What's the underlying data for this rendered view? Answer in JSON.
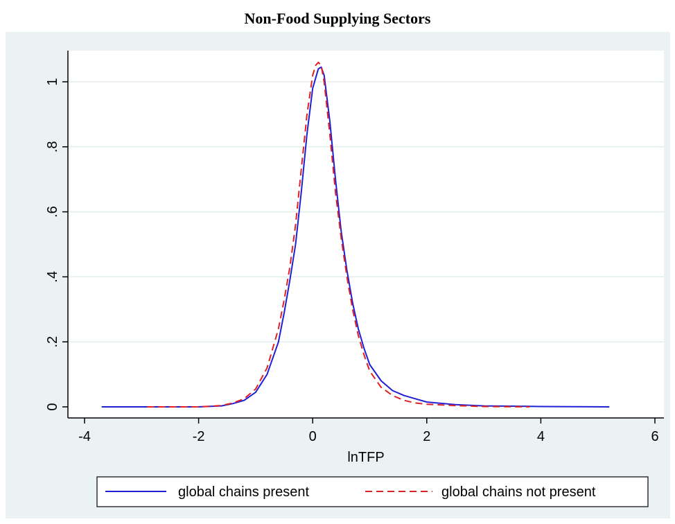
{
  "chart_data": {
    "type": "line",
    "title": "Non-Food Supplying Sectors",
    "xlabel": "lnTFP",
    "ylabel": "",
    "xlim": [
      -4,
      6
    ],
    "ylim": [
      0,
      1.1
    ],
    "xticks": [
      -4,
      -2,
      0,
      2,
      4,
      6
    ],
    "xtick_labels": [
      "-4",
      "-2",
      "0",
      "2",
      "4",
      "6"
    ],
    "yticks": [
      0,
      0.2,
      0.4,
      0.6,
      0.8,
      1
    ],
    "ytick_labels": [
      "0",
      ".2",
      ".4",
      ".6",
      ".8",
      "1"
    ],
    "grid": true,
    "legend_position": "bottom",
    "series": [
      {
        "name": "global chains present",
        "color": "#1f1fd6",
        "style": "solid",
        "x": [
          -3.7,
          -2.0,
          -1.6,
          -1.4,
          -1.2,
          -1.0,
          -0.8,
          -0.6,
          -0.5,
          -0.4,
          -0.3,
          -0.2,
          -0.1,
          0.0,
          0.1,
          0.15,
          0.2,
          0.3,
          0.4,
          0.5,
          0.6,
          0.7,
          0.8,
          0.9,
          1.0,
          1.2,
          1.4,
          1.6,
          1.8,
          2.0,
          2.5,
          3.0,
          4.0,
          5.2
        ],
        "y": [
          0.0,
          0.0,
          0.003,
          0.01,
          0.02,
          0.045,
          0.1,
          0.2,
          0.29,
          0.39,
          0.5,
          0.66,
          0.84,
          0.98,
          1.04,
          1.045,
          1.02,
          0.88,
          0.7,
          0.54,
          0.42,
          0.32,
          0.24,
          0.18,
          0.13,
          0.08,
          0.05,
          0.035,
          0.025,
          0.015,
          0.007,
          0.003,
          0.001,
          0.0
        ]
      },
      {
        "name": "global chains not present",
        "color": "#e02020",
        "style": "dashed",
        "x": [
          -2.9,
          -2.0,
          -1.6,
          -1.4,
          -1.2,
          -1.0,
          -0.8,
          -0.6,
          -0.5,
          -0.4,
          -0.3,
          -0.2,
          -0.1,
          0.0,
          0.05,
          0.1,
          0.15,
          0.2,
          0.3,
          0.4,
          0.5,
          0.6,
          0.7,
          0.8,
          0.9,
          1.0,
          1.2,
          1.4,
          1.6,
          1.8,
          2.0,
          2.5,
          3.0,
          3.8
        ],
        "y": [
          0.0,
          0.0,
          0.004,
          0.012,
          0.025,
          0.055,
          0.12,
          0.24,
          0.33,
          0.43,
          0.56,
          0.73,
          0.9,
          1.02,
          1.05,
          1.06,
          1.05,
          1.0,
          0.84,
          0.66,
          0.52,
          0.4,
          0.3,
          0.22,
          0.16,
          0.11,
          0.06,
          0.035,
          0.02,
          0.012,
          0.008,
          0.004,
          0.001,
          0.0
        ]
      }
    ]
  }
}
